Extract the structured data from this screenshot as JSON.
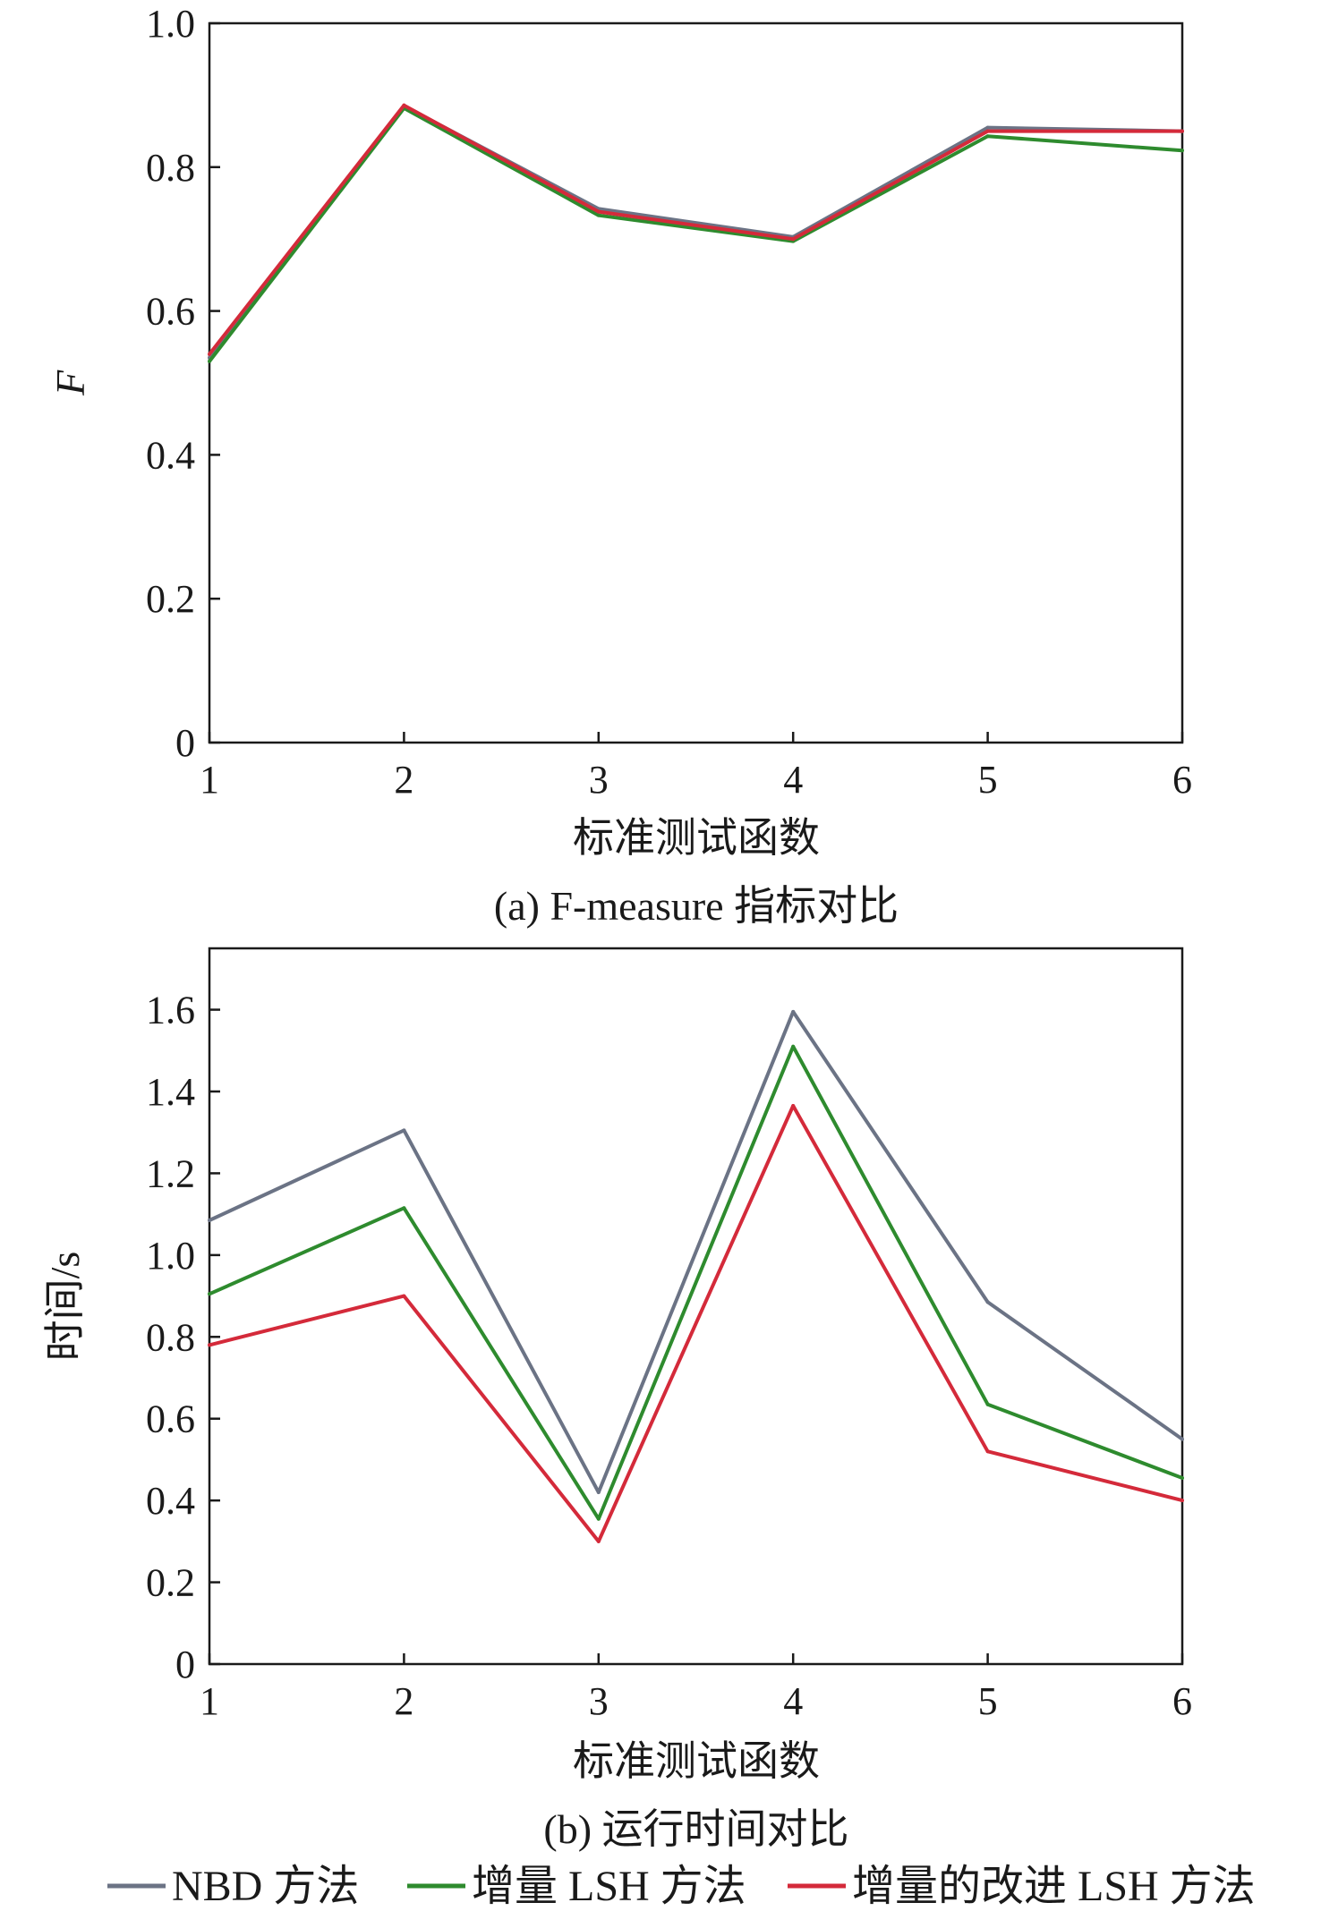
{
  "chart_data": [
    {
      "type": "line",
      "caption": "(a) F-measure 指标对比",
      "xlabel": "标准测试函数",
      "ylabel": "F",
      "x": [
        1,
        2,
        3,
        4,
        5,
        6
      ],
      "xlim": [
        1,
        6
      ],
      "ylim": [
        0,
        1.0
      ],
      "yticks": [
        "0",
        "0.2",
        "0.4",
        "0.6",
        "0.8",
        "1.0"
      ],
      "xticks": [
        "1",
        "2",
        "3",
        "4",
        "5",
        "6"
      ],
      "grid": false,
      "series": [
        {
          "name": "NBD 方法",
          "color": "#6b7385",
          "values": [
            0.535,
            0.885,
            0.742,
            0.703,
            0.855,
            0.85
          ]
        },
        {
          "name": "增量 LSH 方法",
          "color": "#2e8b2e",
          "values": [
            0.53,
            0.882,
            0.733,
            0.697,
            0.843,
            0.823
          ]
        },
        {
          "name": "增量的改进 LSH 方法",
          "color": "#d42a3a",
          "values": [
            0.54,
            0.886,
            0.738,
            0.7,
            0.85,
            0.85
          ]
        }
      ]
    },
    {
      "type": "line",
      "caption": "(b) 运行时间对比",
      "xlabel": "标准测试函数",
      "ylabel": "时间/s",
      "x": [
        1,
        2,
        3,
        4,
        5,
        6
      ],
      "xlim": [
        1,
        6
      ],
      "ylim": [
        0,
        1.75
      ],
      "yticks": [
        "0",
        "0.2",
        "0.4",
        "0.6",
        "0.8",
        "1.0",
        "1.2",
        "1.4",
        "1.6"
      ],
      "xticks": [
        "1",
        "2",
        "3",
        "4",
        "5",
        "6"
      ],
      "grid": false,
      "series": [
        {
          "name": "NBD 方法",
          "color": "#6b7385",
          "values": [
            1.085,
            1.305,
            0.42,
            1.595,
            0.885,
            0.55
          ]
        },
        {
          "name": "增量 LSH 方法",
          "color": "#2e8b2e",
          "values": [
            0.905,
            1.115,
            0.355,
            1.51,
            0.635,
            0.455
          ]
        },
        {
          "name": "增量的改进 LSH 方法",
          "color": "#d42a3a",
          "values": [
            0.78,
            0.9,
            0.3,
            1.365,
            0.52,
            0.4
          ]
        }
      ]
    }
  ],
  "legend": {
    "placement": "bottom-center",
    "items": [
      {
        "label": "NBD 方法",
        "color": "#6b7385"
      },
      {
        "label": "增量 LSH 方法",
        "color": "#2e8b2e"
      },
      {
        "label": "增量的改进 LSH 方法",
        "color": "#d42a3a"
      }
    ]
  }
}
